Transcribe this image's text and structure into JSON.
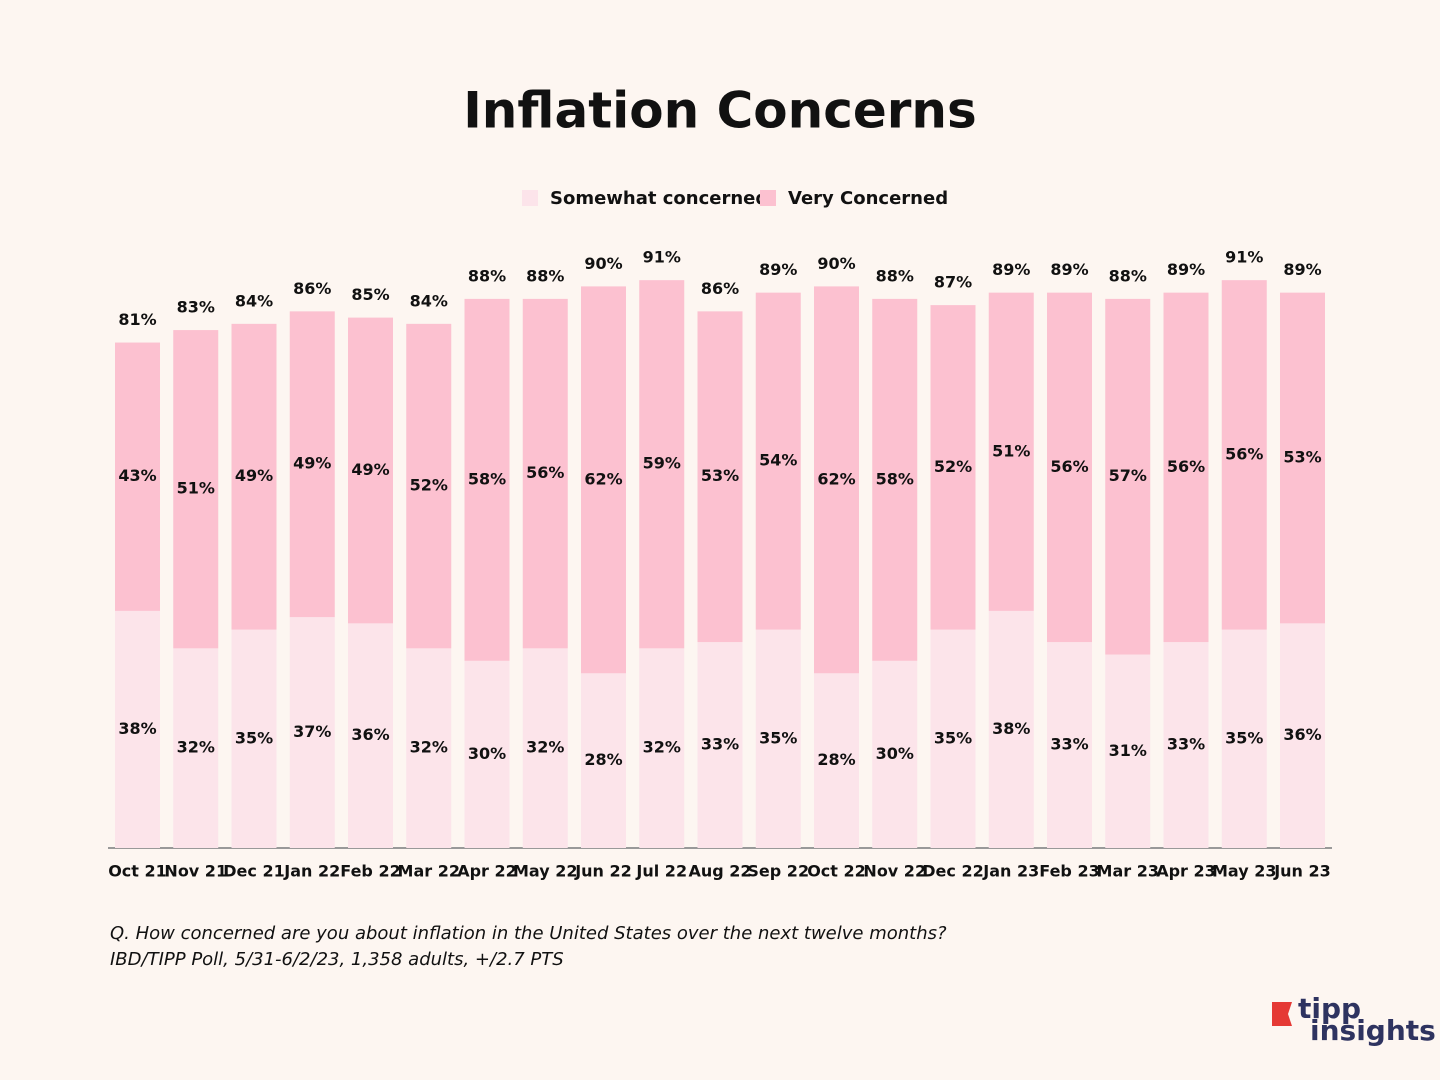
{
  "chart_data": {
    "type": "stacked_bar",
    "title": "Inflation Concerns",
    "categories": [
      "Oct 21",
      "Nov 21",
      "Dec 21",
      "Jan 22",
      "Feb 22",
      "Mar 22",
      "Apr 22",
      "May 22",
      "Jun 22",
      "Jul 22",
      "Aug 22",
      "Sep 22",
      "Oct 22",
      "Nov 22",
      "Dec 22",
      "Jan 23",
      "Feb 23",
      "Mar 23",
      "Apr 23",
      "May 23",
      "Jun 23"
    ],
    "series": [
      {
        "name": "Somewhat concerned",
        "color": "#fce4ea",
        "values": [
          38,
          32,
          35,
          37,
          36,
          32,
          30,
          32,
          28,
          32,
          33,
          35,
          28,
          30,
          35,
          38,
          33,
          31,
          33,
          35,
          36
        ],
        "value_labels": [
          "38%",
          "32%",
          "35%",
          "37%",
          "36%",
          "32%",
          "30%",
          "32%",
          "28%",
          "32%",
          "33%",
          "35%",
          "28%",
          "30%",
          "35%",
          "38%",
          "33%",
          "31%",
          "33%",
          "35%",
          "36%"
        ]
      },
      {
        "name": "Very Concerned",
        "color": "#fcc1d0",
        "values": [
          43,
          51,
          49,
          49,
          49,
          52,
          58,
          56,
          62,
          59,
          53,
          54,
          62,
          58,
          52,
          51,
          56,
          57,
          56,
          56,
          53
        ],
        "value_labels": [
          "43%",
          "51%",
          "49%",
          "49%",
          "49%",
          "52%",
          "58%",
          "56%",
          "62%",
          "59%",
          "53%",
          "54%",
          "62%",
          "58%",
          "52%",
          "51%",
          "56%",
          "57%",
          "56%",
          "56%",
          "53%"
        ]
      }
    ],
    "totals": {
      "values": [
        81,
        83,
        84,
        86,
        85,
        84,
        88,
        88,
        90,
        91,
        86,
        89,
        90,
        88,
        87,
        89,
        89,
        88,
        89,
        91,
        89
      ],
      "value_labels": [
        "81%",
        "83%",
        "84%",
        "86%",
        "85%",
        "84%",
        "88%",
        "88%",
        "90%",
        "91%",
        "86%",
        "89%",
        "90%",
        "88%",
        "87%",
        "89%",
        "89%",
        "88%",
        "89%",
        "91%",
        "89%"
      ]
    },
    "legend": "top",
    "notes": [
      "Q. How concerned are you about inflation in the United States over the next twelve months?",
      "IBD/TIPP Poll, 5/31-6/2/23, 1,358 adults, +/2.7 PTS"
    ]
  },
  "logo": {
    "line1": "tipp",
    "line2": "insights"
  }
}
